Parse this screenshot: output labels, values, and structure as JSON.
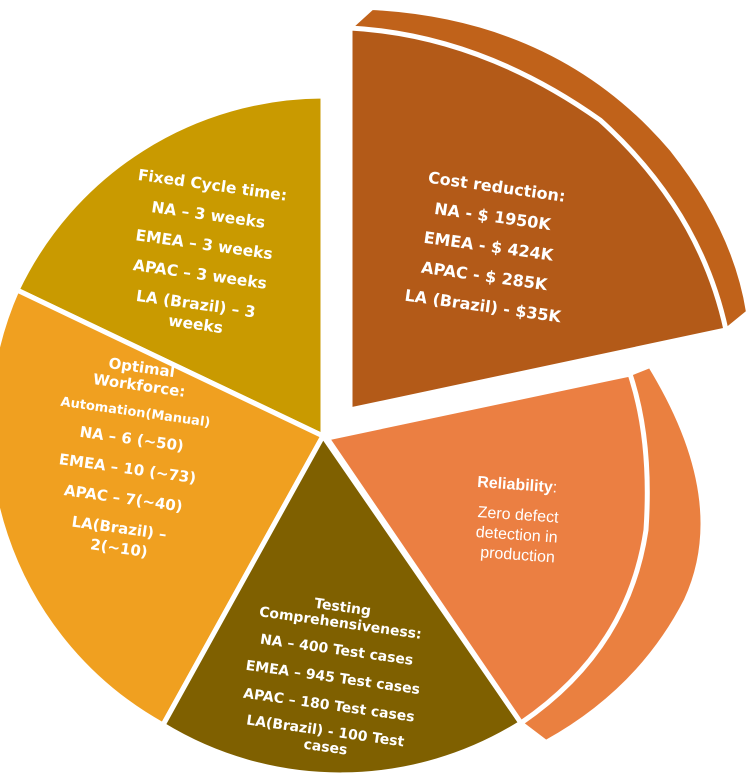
{
  "colors": {
    "cost": "#B35A18",
    "cost_side": "#C0621A",
    "reliability": "#EB7F42",
    "reliability_side": "#EA8040",
    "testing": "#7F6000",
    "workforce": "#F0A020",
    "cycle": "#C99A00",
    "text": "#FFFFFF",
    "edge": "#FFFFFF"
  },
  "segments": {
    "cost": {
      "title": "Cost reduction:",
      "lines": [
        "NA - $ 1950K",
        "EMEA - $ 424K",
        "APAC - $ 285K",
        "LA (Brazil) - $35K"
      ]
    },
    "reliability": {
      "title": "Reliability",
      "title_suffix": ":",
      "lines": [
        "Zero defect",
        "detection in",
        "production"
      ]
    },
    "testing": {
      "title": "Testing",
      "lines": [
        "Comprehensiveness:",
        "NA – 400 Test cases",
        "EMEA – 945 Test cases",
        "APAC – 180 Test cases",
        "LA(Brazil) - 100 Test",
        "cases"
      ]
    },
    "workforce": {
      "title": "Optimal",
      "lines": [
        "Workforce:",
        "Automation(Manual)",
        "NA – 6 (~50)",
        "EMEA – 10 (~73)",
        "APAC – 7(~40)",
        "LA(Brazil) –",
        "2(~10)"
      ]
    },
    "cycle": {
      "title": "Fixed Cycle time:",
      "lines": [
        "NA – 3 weeks",
        "EMEA – 3 weeks",
        "APAC – 3 weeks",
        "LA (Brazil) – 3",
        "weeks"
      ]
    }
  }
}
